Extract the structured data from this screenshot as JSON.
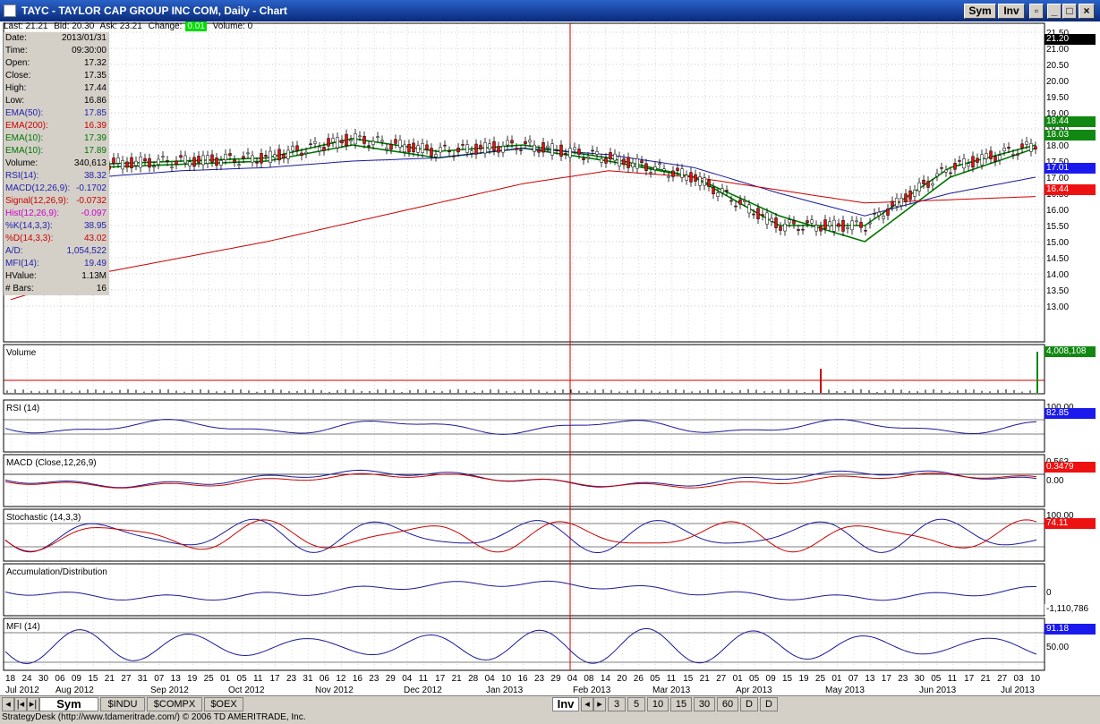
{
  "window": {
    "title": "TAYC - TAYLOR CAP GROUP INC COM, Daily - Chart",
    "sym_label": "Sym",
    "inv_label": "Inv"
  },
  "quote": {
    "last": "Last: 21.21",
    "bid": "Bid: 20.30",
    "ask": "Ask: 23.21",
    "change_label": "Change:",
    "change_value": "0.01",
    "volume": "Volume: 0"
  },
  "info": [
    {
      "label": "Date:",
      "value": "2013/01/31",
      "color": "#000000"
    },
    {
      "label": "Time:",
      "value": "09:30:00",
      "color": "#000000"
    },
    {
      "label": "Open:",
      "value": "17.32",
      "color": "#000000"
    },
    {
      "label": "Close:",
      "value": "17.35",
      "color": "#000000"
    },
    {
      "label": "High:",
      "value": "17.44",
      "color": "#000000"
    },
    {
      "label": "Low:",
      "value": "16.86",
      "color": "#000000"
    },
    {
      "label": "EMA(50):",
      "value": "17.85",
      "color": "#2222aa"
    },
    {
      "label": "EMA(200):",
      "value": "16.39",
      "color": "#cc0000"
    },
    {
      "label": "EMA(10):",
      "value": "17.39",
      "color": "#007700"
    },
    {
      "label": "EMA(10):",
      "value": "17.89",
      "color": "#007700"
    },
    {
      "label": "Volume:",
      "value": "340,613",
      "color": "#000000"
    },
    {
      "label": "RSI(14):",
      "value": "38.32",
      "color": "#2222aa"
    },
    {
      "label": "MACD(12,26,9):",
      "value": "-0.1702",
      "color": "#2222aa"
    },
    {
      "label": "Signal(12,26,9):",
      "value": "-0.0732",
      "color": "#cc0000"
    },
    {
      "label": "Hist(12,26,9):",
      "value": "-0.097",
      "color": "#cc00cc"
    },
    {
      "label": "%K(14,3,3):",
      "value": "38.95",
      "color": "#2222aa"
    },
    {
      "label": "%D(14,3,3):",
      "value": "43.02",
      "color": "#cc0000"
    },
    {
      "label": "A/D:",
      "value": "1,054,522",
      "color": "#2222aa"
    },
    {
      "label": "MFI(14):",
      "value": "19.49",
      "color": "#2222aa"
    },
    {
      "label": "HValue:",
      "value": "1.13M",
      "color": "#000000"
    },
    {
      "label": "# Bars:",
      "value": "16",
      "color": "#000000"
    }
  ],
  "price_axis": [
    "21.50",
    "21.00",
    "20.50",
    "20.00",
    "19.50",
    "19.00",
    "18.50",
    "18.00",
    "17.50",
    "17.00",
    "16.50",
    "16.00",
    "15.50",
    "15.00",
    "14.50",
    "14.00",
    "13.50",
    "13.00"
  ],
  "price_tags": [
    {
      "value": "21.20",
      "bg": "#000000"
    },
    {
      "value": "18.44",
      "bg": "#118811"
    },
    {
      "value": "18.03",
      "bg": "#118811"
    },
    {
      "value": "17.01",
      "bg": "#1a1aee"
    },
    {
      "value": "16.44",
      "bg": "#ee1111"
    }
  ],
  "panels": {
    "volume": {
      "title": "Volume",
      "tag": "4,008,108",
      "tag_bg": "#118811"
    },
    "rsi": {
      "title": "RSI (14)",
      "axis_top": "100.00",
      "tag": "82.85",
      "tag_bg": "#1a1aee"
    },
    "macd": {
      "title": "MACD (Close,12,26,9)",
      "axis_top": "0.563",
      "axis_zero": "0.00",
      "tag": "0.3479",
      "tag_bg": "#ee1111"
    },
    "stoch": {
      "title": "Stochastic (14,3,3)",
      "axis_top": "100.00",
      "tag": "74.11",
      "tag_bg": "#ee1111"
    },
    "ad": {
      "title": "Accumulation/Distribution",
      "axis_zero": "0",
      "tag": "-1,110,786",
      "tag_bg": "#ffffff"
    },
    "mfi": {
      "title": "MFI (14)",
      "axis_mid": "50.00",
      "tag": "91.18",
      "tag_bg": "#1a1aee"
    }
  },
  "x_days": [
    "18",
    "24",
    "30",
    "06",
    "09",
    "15",
    "21",
    "27",
    "31",
    "07",
    "13",
    "19",
    "25",
    "01",
    "05",
    "11",
    "17",
    "23",
    "31",
    "06",
    "12",
    "16",
    "23",
    "29",
    "04",
    "11",
    "17",
    "21",
    "28",
    "04",
    "10",
    "16",
    "23",
    "29",
    "04",
    "08",
    "14",
    "20",
    "26",
    "05",
    "11",
    "15",
    "21",
    "27",
    "01",
    "05",
    "09",
    "15",
    "19",
    "25",
    "01",
    "07",
    "13",
    "17",
    "23",
    "30",
    "05",
    "11",
    "17",
    "21",
    "27",
    "03",
    "10"
  ],
  "x_months": [
    "Jul 2012",
    "Aug 2012",
    "Sep 2012",
    "Oct 2012",
    "Nov 2012",
    "Dec 2012",
    "Jan 2013",
    "Feb 2013",
    "Mar 2013",
    "Apr 2013",
    "May 2013",
    "Jun 2013",
    "Jul 2013"
  ],
  "tabs": {
    "sym": "Sym",
    "indu": "$INDU",
    "compx": "$COMPX",
    "oex": "$OEX",
    "inv": "Inv",
    "intervals": [
      "3",
      "5",
      "10",
      "15",
      "30",
      "60",
      "D",
      "D"
    ]
  },
  "status_text": "StrategyDesk (http://www.tdameritrade.com/) © 2006 TD AMERITRADE, Inc.",
  "chart_data": {
    "type": "line",
    "title": "TAYC - TAYLOR CAP GROUP INC COM, Daily - Chart",
    "ylim": [
      12.75,
      21.75
    ],
    "x": [
      "Jul 2012",
      "Aug 2012",
      "Sep 2012",
      "Oct 2012",
      "Nov 2012",
      "Dec 2012",
      "Jan 2013",
      "Feb 2013",
      "Mar 2013",
      "Apr 2013",
      "May 2013",
      "Jun 2013",
      "Jul 2013"
    ],
    "series": [
      {
        "values": [
          17.2,
          17.4,
          17.5,
          17.6,
          18.2,
          17.8,
          18.0,
          17.6,
          17.0,
          15.5,
          15.5,
          17.3,
          18.0
        ]
      },
      {
        "values": [
          17.1,
          17.3,
          17.4,
          17.5,
          18.0,
          17.6,
          17.9,
          17.5,
          17.0,
          15.8,
          15.0,
          17.0,
          17.9
        ]
      },
      {
        "values": [
          16.8,
          17.0,
          17.2,
          17.3,
          17.5,
          17.6,
          17.9,
          17.7,
          17.3,
          16.5,
          15.8,
          16.5,
          17.0
        ]
      },
      {
        "values": [
          13.2,
          14.0,
          14.5,
          15.0,
          15.6,
          16.2,
          16.8,
          17.2,
          17.0,
          16.6,
          16.2,
          16.3,
          16.4
        ]
      }
    ]
  }
}
